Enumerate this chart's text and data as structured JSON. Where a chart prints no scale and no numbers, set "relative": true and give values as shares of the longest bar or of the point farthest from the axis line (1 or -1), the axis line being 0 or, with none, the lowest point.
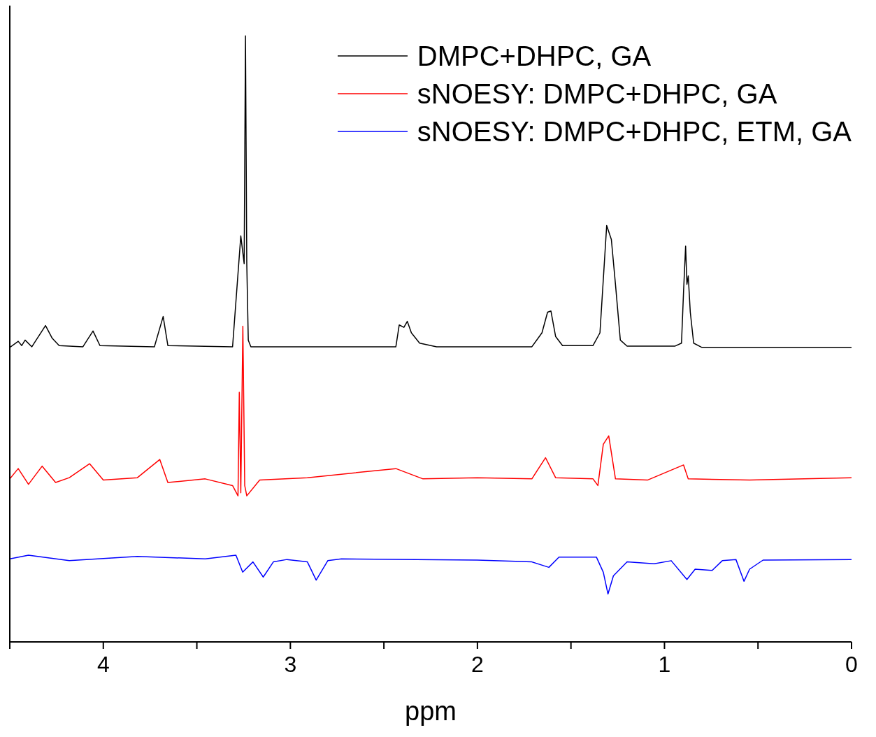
{
  "chart_data": {
    "type": "line",
    "xlabel": "ppm",
    "relative": true,
    "legend": "top right",
    "marker": "none",
    "line_style": "solid",
    "xlim": [
      4.5,
      0
    ],
    "xticks": [
      {
        "value": 4.5,
        "label": null
      },
      4,
      {
        "value": 3.5,
        "label": null
      },
      3,
      {
        "value": 2.5,
        "label": null
      },
      2,
      {
        "value": 1.5,
        "label": null
      },
      1,
      {
        "value": 0.5,
        "label": null
      },
      0
    ],
    "series": [
      {
        "name": "DMPC+DHPC, GA",
        "color": "#000000",
        "x": [
          4.5,
          4.455,
          4.436,
          4.418,
          4.382,
          4.309,
          4.273,
          4.236,
          4.109,
          4.055,
          4.018,
          3.727,
          3.68,
          3.655,
          3.309,
          3.265,
          3.247,
          3.24,
          3.233,
          3.225,
          3.211,
          3.164,
          2.436,
          2.418,
          2.393,
          2.375,
          2.353,
          2.309,
          2.218,
          1.709,
          1.655,
          1.625,
          1.607,
          1.582,
          1.545,
          1.382,
          1.345,
          1.324,
          1.309,
          1.284,
          1.262,
          1.236,
          1.2,
          0.945,
          0.909,
          0.898,
          0.887,
          0.88,
          0.873,
          0.862,
          0.844,
          0.8,
          0
        ],
        "values": [
          0.486,
          0.496,
          0.489,
          0.498,
          0.487,
          0.522,
          0.501,
          0.489,
          0.487,
          0.513,
          0.489,
          0.487,
          0.537,
          0.489,
          0.487,
          0.67,
          0.624,
          1.0,
          0.624,
          0.498,
          0.487,
          0.487,
          0.487,
          0.523,
          0.519,
          0.529,
          0.51,
          0.493,
          0.487,
          0.487,
          0.51,
          0.544,
          0.546,
          0.504,
          0.489,
          0.489,
          0.51,
          0.613,
          0.687,
          0.664,
          0.59,
          0.498,
          0.488,
          0.488,
          0.493,
          0.578,
          0.653,
          0.59,
          0.604,
          0.544,
          0.493,
          0.486,
          0.486
        ]
      },
      {
        "name": "sNOESY: DMPC+DHPC, GA",
        "color": "#ff0000",
        "x": [
          4.5,
          4.455,
          4.4,
          4.327,
          4.255,
          4.182,
          4.073,
          4.0,
          3.818,
          3.698,
          3.655,
          3.455,
          3.309,
          3.28,
          3.273,
          3.265,
          3.254,
          3.244,
          3.233,
          3.164,
          2.909,
          2.436,
          2.291,
          2.0,
          1.709,
          1.636,
          1.582,
          1.382,
          1.356,
          1.327,
          1.298,
          1.262,
          1.091,
          0.898,
          0.873,
          0.545,
          0
        ],
        "values": [
          0.269,
          0.286,
          0.26,
          0.29,
          0.263,
          0.271,
          0.294,
          0.267,
          0.271,
          0.301,
          0.263,
          0.269,
          0.258,
          0.241,
          0.412,
          0.246,
          0.521,
          0.258,
          0.241,
          0.267,
          0.271,
          0.286,
          0.269,
          0.271,
          0.269,
          0.304,
          0.271,
          0.269,
          0.258,
          0.326,
          0.34,
          0.269,
          0.267,
          0.292,
          0.269,
          0.267,
          0.271
        ]
      },
      {
        "name": "sNOESY: DMPC+DHPC, ETM, GA",
        "color": "#0000ff",
        "x": [
          4.5,
          4.4,
          4.182,
          3.818,
          3.455,
          3.291,
          3.255,
          3.2,
          3.145,
          3.091,
          3.018,
          2.909,
          2.862,
          2.8,
          2.727,
          2.0,
          1.709,
          1.618,
          1.564,
          1.364,
          1.327,
          1.302,
          1.273,
          1.2,
          1.055,
          0.964,
          0.88,
          0.836,
          0.745,
          0.691,
          0.618,
          0.575,
          0.545,
          0.473,
          0
        ],
        "values": [
          0.137,
          0.143,
          0.134,
          0.141,
          0.137,
          0.143,
          0.115,
          0.132,
          0.107,
          0.132,
          0.136,
          0.132,
          0.102,
          0.134,
          0.137,
          0.135,
          0.132,
          0.123,
          0.14,
          0.14,
          0.115,
          0.079,
          0.109,
          0.132,
          0.129,
          0.134,
          0.103,
          0.12,
          0.118,
          0.134,
          0.136,
          0.1,
          0.12,
          0.135,
          0.136
        ]
      }
    ]
  }
}
